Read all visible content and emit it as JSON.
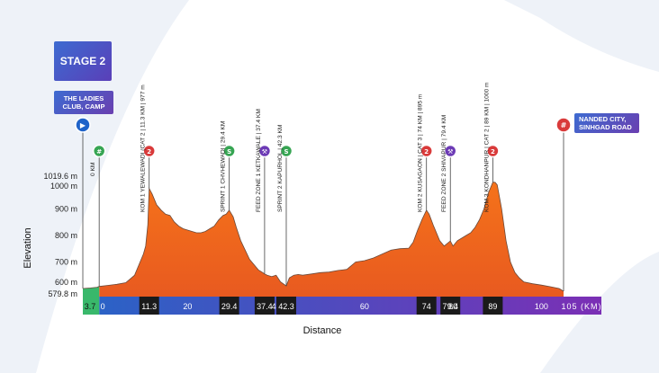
{
  "stage_label": "STAGE 2",
  "start_label": "THE LADIES CLUB, CAMP",
  "finish_label": "NANDED CITY, SINHGAD ROAD",
  "colors": {
    "profile_orange": "#ee6b1f",
    "profile_green": "#39b86b",
    "bar_blue": "#2b62c6",
    "bar_purple": "#7b2fb5",
    "marker_dark": "#222222",
    "label_color": "#222222"
  },
  "chart_data": {
    "type": "area",
    "xlabel": "Distance",
    "ylabel": "Elevation",
    "ylim": [
      579.8,
      1019.6
    ],
    "xlim": [
      -3.7,
      105
    ],
    "yticks": [
      "1019.6 m",
      "1000 m",
      "900 m",
      "800 m",
      "700 m",
      "600 m",
      "579.8 m"
    ],
    "ytick_values": [
      1019.6,
      1000,
      900,
      800,
      700,
      600,
      579.8
    ],
    "xticks": [
      "3.7",
      "0",
      "11.3",
      "20",
      "29.4",
      "37.4",
      "40",
      "42.3",
      "60",
      "74",
      "79.4",
      "80",
      "89",
      "100",
      "105 (KM)"
    ],
    "xtick_values": [
      -3.7,
      0,
      11.3,
      20,
      29.4,
      37.4,
      40,
      42.3,
      60,
      74,
      79.4,
      80,
      89,
      100,
      105
    ],
    "xtick_highlighted": [
      false,
      false,
      true,
      false,
      true,
      true,
      false,
      true,
      false,
      true,
      true,
      false,
      true,
      false,
      false
    ],
    "x": [
      -3.7,
      -2,
      -0.5,
      0,
      2,
      4,
      6,
      8,
      9,
      10,
      10.5,
      11,
      11.3,
      12,
      13,
      14,
      15,
      16,
      17,
      18,
      19,
      20,
      21,
      22,
      23,
      24,
      25,
      26,
      27,
      28,
      28.7,
      29.4,
      30.3,
      31,
      32,
      33,
      34,
      35,
      36,
      37,
      37.4,
      38,
      39,
      40,
      41,
      42.3,
      43,
      44,
      45,
      46,
      48,
      50,
      52,
      54,
      56,
      58,
      60,
      62,
      64,
      66,
      68,
      70,
      71,
      72,
      73,
      74,
      74.6,
      75.5,
      77,
      78,
      79.4,
      80,
      81,
      82,
      83,
      84,
      85,
      86,
      87,
      88,
      89,
      89.5,
      90,
      91,
      92,
      93,
      94,
      95,
      96,
      98,
      100,
      102,
      104,
      105
    ],
    "y": [
      600,
      602,
      605,
      608,
      612,
      616,
      622,
      650,
      690,
      730,
      760,
      840,
      977,
      955,
      915,
      895,
      880,
      875,
      850,
      835,
      825,
      820,
      815,
      810,
      810,
      815,
      825,
      835,
      858,
      875,
      880,
      895,
      870,
      830,
      780,
      745,
      710,
      690,
      670,
      660,
      655,
      650,
      645,
      650,
      625,
      610,
      640,
      650,
      653,
      650,
      655,
      660,
      662,
      668,
      672,
      700,
      705,
      715,
      730,
      745,
      750,
      752,
      775,
      820,
      860,
      895,
      880,
      840,
      780,
      760,
      779,
      760,
      780,
      790,
      800,
      810,
      830,
      860,
      900,
      960,
      1000,
      1000,
      990,
      900,
      780,
      700,
      660,
      640,
      625,
      618,
      613,
      607,
      600,
      590
    ],
    "markers": [
      {
        "x": -3.7,
        "label": "",
        "icon": "start-icon"
      },
      {
        "x": 0,
        "label": "0 KM",
        "icon": "flag-start-icon"
      },
      {
        "x": 11.3,
        "label": "KOM 1 YEWALEWADI (CAT 2 | 11.3 KM | 977 m",
        "icon": "kom-icon"
      },
      {
        "x": 29.4,
        "label": "SPRINT 1 CHVHEWADI | 29.4 KM",
        "icon": "sprint-icon"
      },
      {
        "x": 37.4,
        "label": "FEED ZONE 1 KETKAWALE | 37.4 KM",
        "icon": "feed-icon"
      },
      {
        "x": 42.3,
        "label": "SPRINT 2 KAPURHOL | 42.3 KM",
        "icon": "sprint-icon"
      },
      {
        "x": 74,
        "label": "KOM 2 KUSAGAON | CAT 3 | 74 KM | 895 m",
        "icon": "kom-icon"
      },
      {
        "x": 79.4,
        "label": "FEED ZONE 2 SHIVAPUR | 79.4 KM",
        "icon": "feed-icon"
      },
      {
        "x": 89,
        "label": "KOM 3 KONDHANPUR | CAT 2 | 89 KM | 1000 m",
        "icon": "kom-icon"
      },
      {
        "x": 105,
        "label": "",
        "icon": "finish-icon"
      }
    ]
  }
}
